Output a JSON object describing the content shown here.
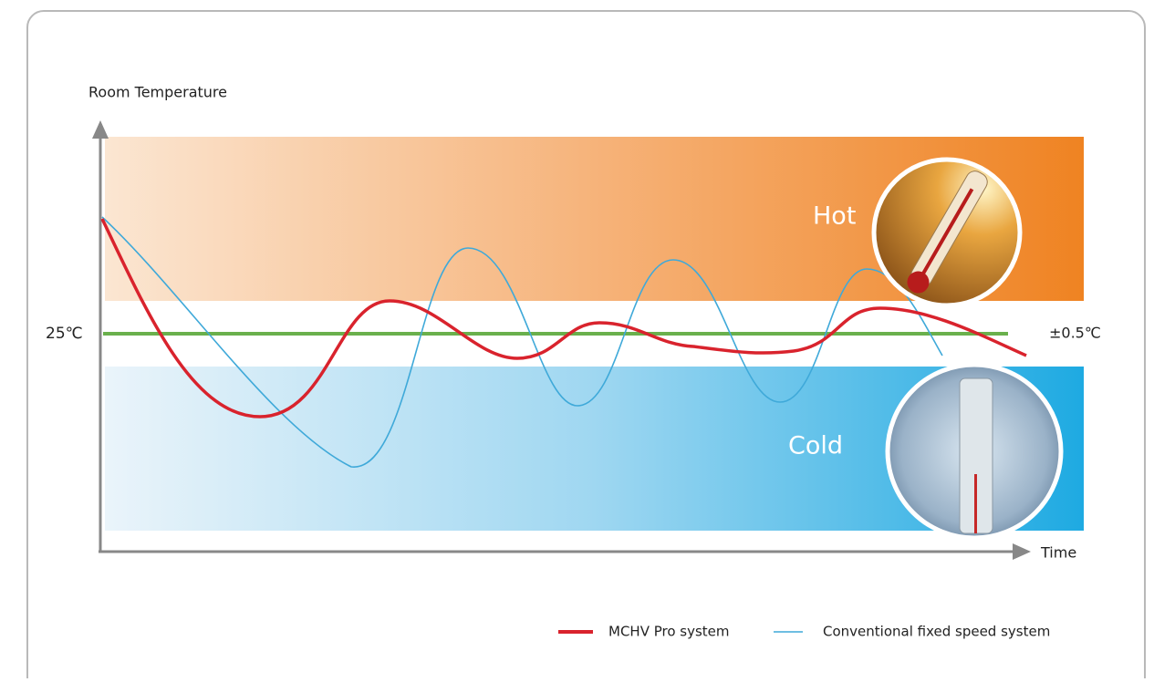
{
  "diagram": {
    "y_axis_label": "Room Temperature",
    "x_axis_label": "Time",
    "setpoint_label": "25℃",
    "tolerance_label": "±0.5℃",
    "hot_label": "Hot",
    "cold_label": "Cold",
    "legend": [
      "MCHV Pro system",
      "Conventional fixed speed system"
    ]
  }
}
